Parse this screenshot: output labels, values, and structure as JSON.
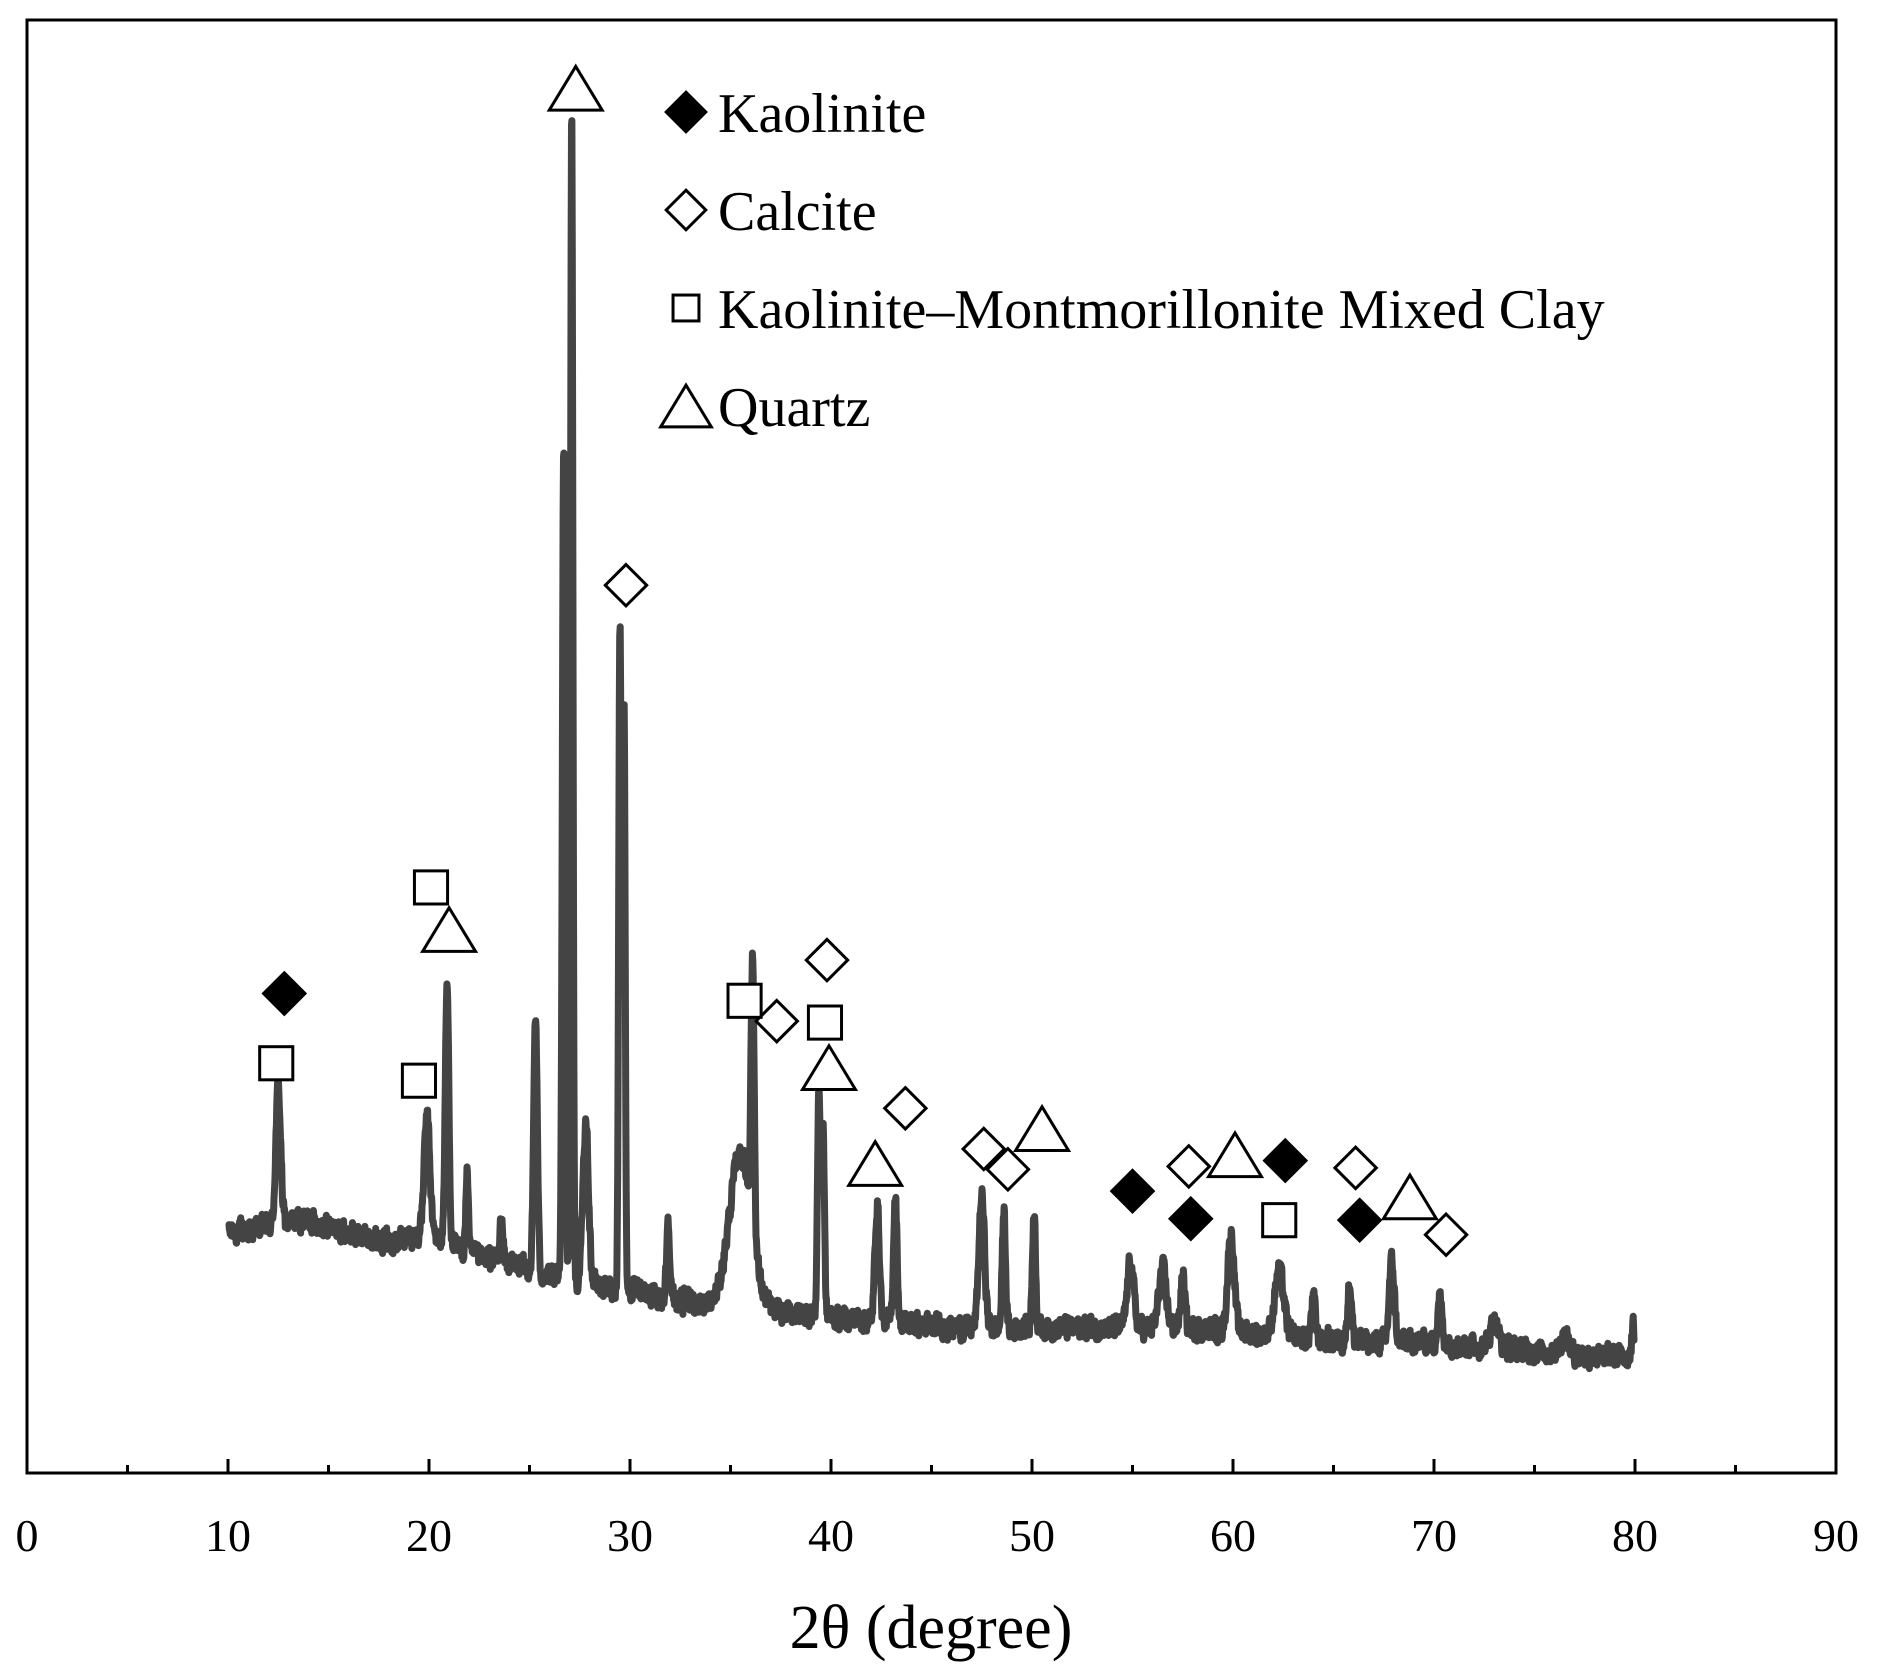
{
  "chart_data": {
    "type": "line",
    "xlabel": "2θ (degree)",
    "ylabel": "",
    "xlim": [
      0,
      90
    ],
    "xticks": [
      0,
      10,
      20,
      30,
      40,
      50,
      60,
      70,
      80,
      90
    ],
    "ylim": [
      0,
      100
    ],
    "y_ticks_labeled": false,
    "grid": false,
    "legend_placement": "top-center",
    "line_color": "#444444",
    "legend": [
      {
        "label": "Kaolinite",
        "marker": "filled-diamond"
      },
      {
        "label": "Calcite",
        "marker": "open-diamond"
      },
      {
        "label": "Kaolinite–Montmorillonite Mixed Clay",
        "marker": "open-square"
      },
      {
        "label": "Quartz",
        "marker": "open-triangle"
      }
    ],
    "baseline": [
      [
        10,
        16.5
      ],
      [
        12,
        17
      ],
      [
        14,
        17.5
      ],
      [
        16,
        16.5
      ],
      [
        18,
        16
      ],
      [
        20,
        16.5
      ],
      [
        22,
        15
      ],
      [
        24,
        14.5
      ],
      [
        26,
        13.5
      ],
      [
        28,
        13
      ],
      [
        30,
        12.5
      ],
      [
        32,
        12
      ],
      [
        34,
        11.5
      ],
      [
        38,
        11
      ],
      [
        42,
        10.5
      ],
      [
        46,
        10
      ],
      [
        50,
        10
      ],
      [
        54,
        10
      ],
      [
        58,
        10
      ],
      [
        62,
        9.5
      ],
      [
        66,
        9
      ],
      [
        70,
        9
      ],
      [
        74,
        8.5
      ],
      [
        78,
        8
      ],
      [
        80,
        8
      ]
    ],
    "peaks": [
      {
        "x": 12.5,
        "y": 26.5,
        "w": 0.12
      },
      {
        "x": 19.9,
        "y": 24.5,
        "w": 0.14
      },
      {
        "x": 20.9,
        "y": 33.5,
        "w": 0.09
      },
      {
        "x": 21.9,
        "y": 20.5,
        "w": 0.07
      },
      {
        "x": 23.6,
        "y": 17.5,
        "w": 0.07
      },
      {
        "x": 25.3,
        "y": 31.5,
        "w": 0.09
      },
      {
        "x": 26.7,
        "y": 71,
        "w": 0.07
      },
      {
        "x": 27.1,
        "y": 93.5,
        "w": 0.06
      },
      {
        "x": 27.8,
        "y": 24,
        "w": 0.14
      },
      {
        "x": 29.5,
        "y": 58.5,
        "w": 0.06
      },
      {
        "x": 29.7,
        "y": 53,
        "w": 0.06
      },
      {
        "x": 31.9,
        "y": 17.5,
        "w": 0.08
      },
      {
        "x": 35.5,
        "y": 22,
        "w": 0.55
      },
      {
        "x": 36.1,
        "y": 29.5,
        "w": 0.08
      },
      {
        "x": 39.4,
        "y": 26.5,
        "w": 0.07
      },
      {
        "x": 39.6,
        "y": 24,
        "w": 0.07
      },
      {
        "x": 42.3,
        "y": 18.5,
        "w": 0.11
      },
      {
        "x": 43.2,
        "y": 19,
        "w": 0.09
      },
      {
        "x": 47.5,
        "y": 19,
        "w": 0.14
      },
      {
        "x": 48.6,
        "y": 18,
        "w": 0.08
      },
      {
        "x": 50.1,
        "y": 18,
        "w": 0.08
      },
      {
        "x": 54.9,
        "y": 14.5,
        "w": 0.16
      },
      {
        "x": 56.5,
        "y": 14,
        "w": 0.18
      },
      {
        "x": 57.5,
        "y": 13.5,
        "w": 0.1
      },
      {
        "x": 59.9,
        "y": 16.5,
        "w": 0.16
      },
      {
        "x": 62.3,
        "y": 14,
        "w": 0.22
      },
      {
        "x": 64.0,
        "y": 12,
        "w": 0.1
      },
      {
        "x": 65.8,
        "y": 13,
        "w": 0.1
      },
      {
        "x": 67.9,
        "y": 14.5,
        "w": 0.13
      },
      {
        "x": 70.3,
        "y": 12,
        "w": 0.1
      },
      {
        "x": 73.0,
        "y": 10.5,
        "w": 0.2
      },
      {
        "x": 76.5,
        "y": 9.5,
        "w": 0.2
      },
      {
        "x": 79.9,
        "y": 10,
        "w": 0.08
      }
    ],
    "markers": [
      {
        "phase": "Kaolinite",
        "shape": "filled-diamond",
        "x": 12.8,
        "y": 33
      },
      {
        "phase": "Kaolinite",
        "shape": "filled-diamond",
        "x": 55.0,
        "y": 19.4
      },
      {
        "phase": "Kaolinite",
        "shape": "filled-diamond",
        "x": 57.9,
        "y": 17.5
      },
      {
        "phase": "Kaolinite",
        "shape": "filled-diamond",
        "x": 62.6,
        "y": 21.5
      },
      {
        "phase": "Kaolinite",
        "shape": "filled-diamond",
        "x": 66.3,
        "y": 17.4
      },
      {
        "phase": "Calcite",
        "shape": "open-diamond",
        "x": 29.8,
        "y": 61.1
      },
      {
        "phase": "Calcite",
        "shape": "open-diamond",
        "x": 37.3,
        "y": 31.1
      },
      {
        "phase": "Calcite",
        "shape": "open-diamond",
        "x": 39.8,
        "y": 35.3
      },
      {
        "phase": "Calcite",
        "shape": "open-diamond",
        "x": 43.7,
        "y": 25.1
      },
      {
        "phase": "Calcite",
        "shape": "open-diamond",
        "x": 47.6,
        "y": 22.3
      },
      {
        "phase": "Calcite",
        "shape": "open-diamond",
        "x": 48.8,
        "y": 20.9
      },
      {
        "phase": "Calcite",
        "shape": "open-diamond",
        "x": 57.8,
        "y": 21.1
      },
      {
        "phase": "Calcite",
        "shape": "open-diamond",
        "x": 66.1,
        "y": 21.0
      },
      {
        "phase": "Calcite",
        "shape": "open-diamond",
        "x": 70.6,
        "y": 16.4
      },
      {
        "phase": "Kaolinite–Montmorillonite Mixed Clay",
        "shape": "open-square",
        "x": 12.4,
        "y": 28.2
      },
      {
        "phase": "Kaolinite–Montmorillonite Mixed Clay",
        "shape": "open-square",
        "x": 19.5,
        "y": 27.0
      },
      {
        "phase": "Kaolinite–Montmorillonite Mixed Clay",
        "shape": "open-square",
        "x": 20.1,
        "y": 40.3
      },
      {
        "phase": "Kaolinite–Montmorillonite Mixed Clay",
        "shape": "open-square",
        "x": 35.7,
        "y": 32.5
      },
      {
        "phase": "Kaolinite–Montmorillonite Mixed Clay",
        "shape": "open-square",
        "x": 39.7,
        "y": 31.0
      },
      {
        "phase": "Kaolinite–Montmorillonite Mixed Clay",
        "shape": "open-square",
        "x": 62.3,
        "y": 17.4
      },
      {
        "phase": "Quartz",
        "shape": "open-triangle",
        "x": 27.3,
        "y": 95.3
      },
      {
        "phase": "Quartz",
        "shape": "open-triangle",
        "x": 21.0,
        "y": 37.4
      },
      {
        "phase": "Quartz",
        "shape": "open-triangle",
        "x": 39.9,
        "y": 27.9
      },
      {
        "phase": "Quartz",
        "shape": "open-triangle",
        "x": 42.2,
        "y": 21.3
      },
      {
        "phase": "Quartz",
        "shape": "open-triangle",
        "x": 50.5,
        "y": 23.7
      },
      {
        "phase": "Quartz",
        "shape": "open-triangle",
        "x": 60.1,
        "y": 21.9
      },
      {
        "phase": "Quartz",
        "shape": "open-triangle",
        "x": 68.8,
        "y": 19.0
      }
    ]
  }
}
